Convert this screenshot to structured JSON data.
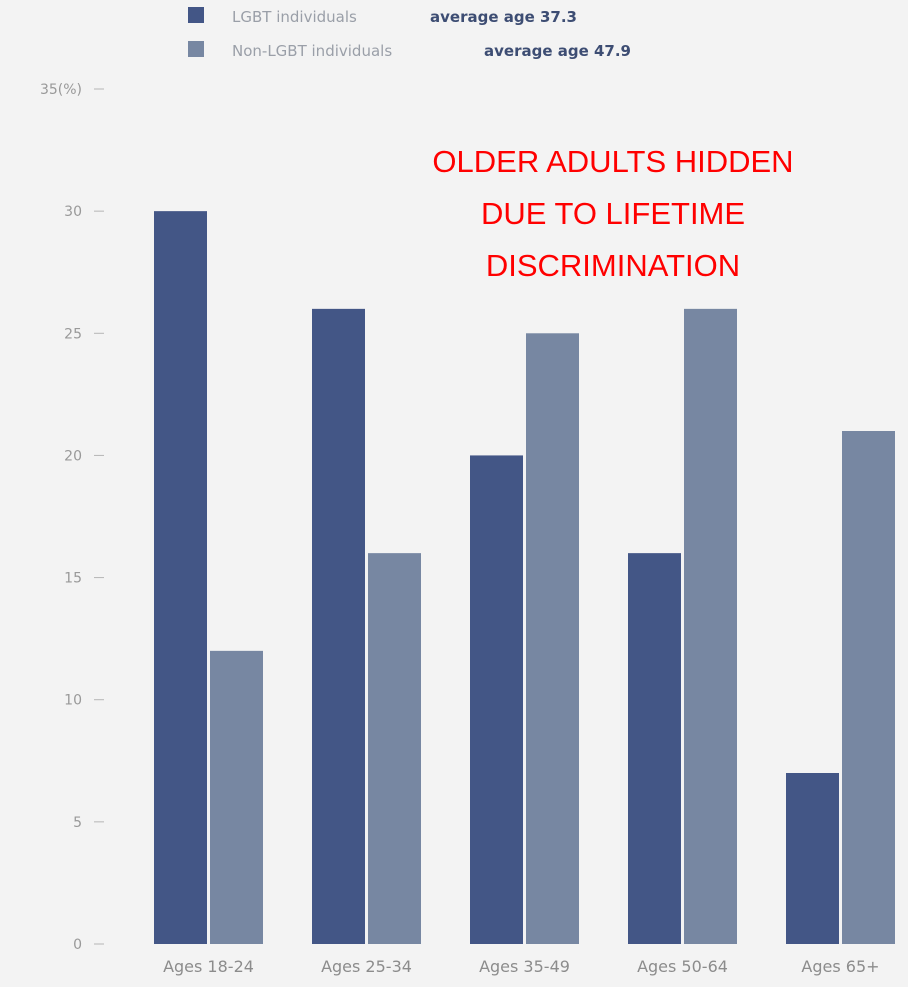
{
  "chart_data": {
    "type": "bar",
    "title": "",
    "xlabel": "",
    "ylabel": "",
    "y_unit_label": "35(%)",
    "ylim": [
      0,
      35
    ],
    "yticks": [
      0,
      5,
      10,
      15,
      20,
      25,
      30,
      35
    ],
    "ytick_labels": [
      "0",
      "5",
      "10",
      "15",
      "20",
      "25",
      "30",
      "35(%)"
    ],
    "grid": false,
    "legend_position": "top",
    "categories": [
      "Ages 18-24",
      "Ages 25-34",
      "Ages 35-49",
      "Ages 50-64",
      "Ages 65+"
    ],
    "series": [
      {
        "name": "LGBT individuals",
        "note": "average age 37.3",
        "color": "#435686",
        "values": [
          30,
          26,
          20,
          16,
          7
        ]
      },
      {
        "name": "Non-LGBT individuals",
        "note": "average age 47.9",
        "color": "#7787a2",
        "values": [
          12,
          16,
          25,
          26,
          21
        ]
      }
    ],
    "annotation": [
      "OLDER ADULTS HIDDEN",
      "DUE TO LIFETIME",
      "DISCRIMINATION"
    ]
  }
}
